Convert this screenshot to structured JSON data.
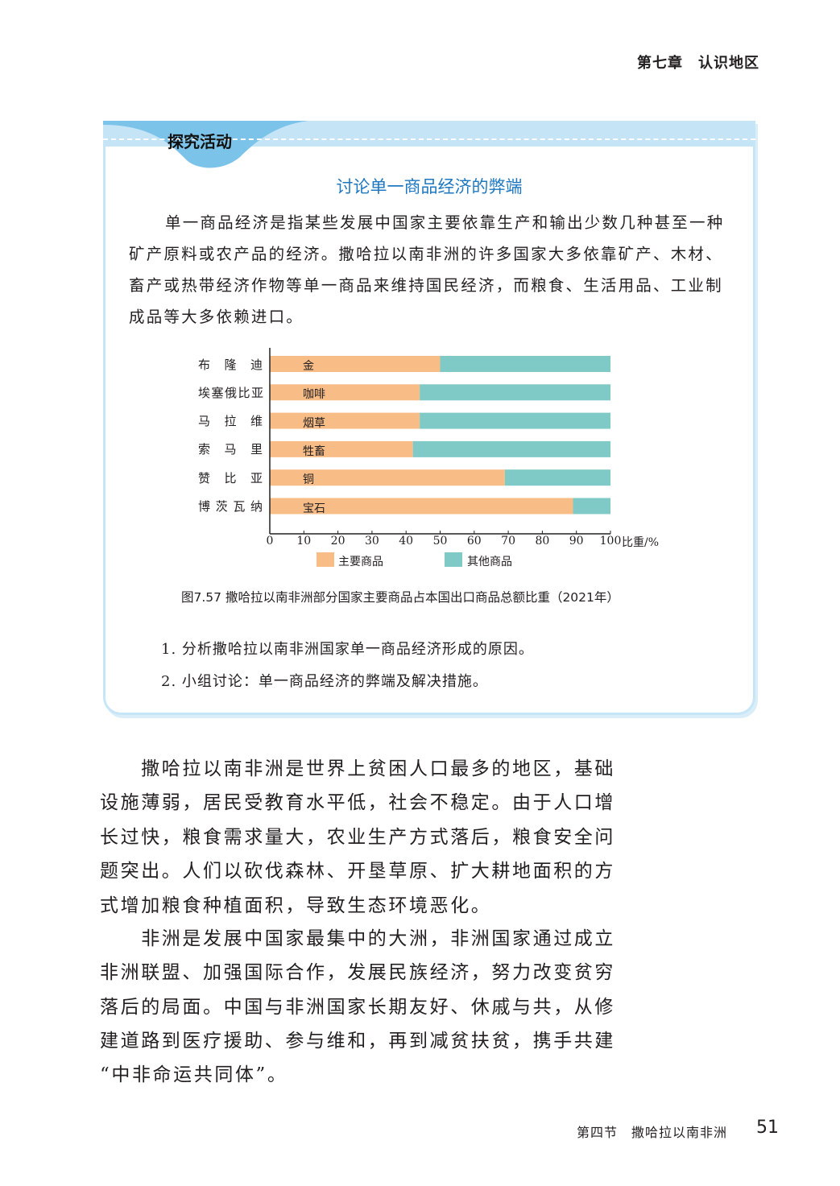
{
  "header": {
    "chapter": "第七章　认识地区"
  },
  "activity": {
    "tab_label": "探究活动",
    "title": "讨论单一商品经济的弊端",
    "paragraph_lines": [
      "单一商品经济是指某些发展中国家主要依靠生产和输出少数几种甚至一种",
      "矿产原料或农产品的经济。撒哈拉以南非洲的许多国家大多依靠矿产、木材、",
      "畜产或热带经济作物等单一商品来维持国民经济，而粮食、生活用品、工业制",
      "成品等大多依赖进口。"
    ],
    "caption": "图7.57  撒哈拉以南非洲部分国家主要商品占本国出口商品总额比重（2021年）",
    "questions": [
      "1. 分析撒哈拉以南非洲国家单一商品经济形成的原因。",
      "2. 小组讨论：单一商品经济的弊端及解决措施。"
    ]
  },
  "chart_data": {
    "type": "bar",
    "orientation": "horizontal-stacked",
    "categories": [
      "布隆迪",
      "埃塞俄比亚",
      "马拉维",
      "索马里",
      "赞比亚",
      "博茨瓦纳"
    ],
    "commodities": [
      "金",
      "咖啡",
      "烟草",
      "牲畜",
      "铜",
      "宝石"
    ],
    "series": [
      {
        "name": "主要商品",
        "values": [
          50,
          44,
          44,
          42,
          69,
          89
        ],
        "color": "#f8bd87"
      },
      {
        "name": "其他商品",
        "values": [
          50,
          56,
          56,
          58,
          31,
          11
        ],
        "color": "#7fcac6"
      }
    ],
    "xlabel": "比重/%",
    "xlim": [
      0,
      100
    ],
    "xticks": [
      "0",
      "10",
      "20",
      "30",
      "40",
      "50",
      "60",
      "70",
      "80",
      "90",
      "100"
    ],
    "legend": "bottom",
    "grid": false
  },
  "body": {
    "paragraph_lines": [
      "　　撒哈拉以南非洲是世界上贫困人口最多的地区，基础",
      "设施薄弱，居民受教育水平低，社会不稳定。由于人口增",
      "长过快，粮食需求量大，农业生产方式落后，粮食安全问",
      "题突出。人们以砍伐森林、开垦草原、扩大耕地面积的方",
      "式增加粮食种植面积，导致生态环境恶化。",
      "　　非洲是发展中国家最集中的大洲，非洲国家通过成立",
      "非洲联盟、加强国际合作，发展民族经济，努力改变贫穷",
      "落后的局面。中国与非洲国家长期友好、休戚与共，从修",
      "建道路到医疗援助、参与维和，再到减贫扶贫，携手共建",
      "“中非命运共同体”。"
    ]
  },
  "footer": {
    "section": "第四节　撒哈拉以南非洲",
    "page_number": "51"
  }
}
